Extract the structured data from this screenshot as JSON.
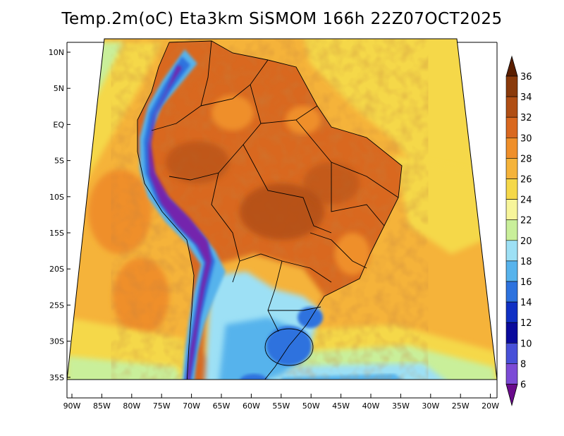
{
  "title": "Temp.2m(oC) Eta3km SiSMOM 166h 22Z07OCT2025",
  "lat_ticks": [
    "10N",
    "5N",
    "EQ",
    "5S",
    "10S",
    "15S",
    "20S",
    "25S",
    "30S",
    "35S"
  ],
  "lon_ticks": [
    "90W",
    "85W",
    "80W",
    "75W",
    "70W",
    "65W",
    "60W",
    "55W",
    "50W",
    "45W",
    "40W",
    "35W",
    "30W",
    "25W",
    "20W"
  ],
  "colorbar": {
    "labels": [
      "36",
      "34",
      "32",
      "30",
      "28",
      "26",
      "24",
      "22",
      "20",
      "18",
      "16",
      "14",
      "12",
      "10",
      "8",
      "6"
    ],
    "colors": [
      "#5a1e00",
      "#8a3a0b",
      "#b04e14",
      "#d9681f",
      "#ef8f2a",
      "#f5b33a",
      "#f5d849",
      "#f7f59a",
      "#c9ef9a",
      "#9de0f5",
      "#57b3ec",
      "#2d72de",
      "#1030c4",
      "#0a0a9c",
      "#4850d8",
      "#7c4bd6",
      "#9b2fb5",
      "#6a0a8c"
    ]
  },
  "map_colors": {
    "ocean_warm": "#f5b33a",
    "ocean_mild": "#f5d849",
    "ocean_cool": "#c9ef9a",
    "land_hot": "#d9681f",
    "land_very_hot": "#b04e14",
    "south_cool": "#9de0f5",
    "andes_cold": "#2d72de",
    "andes_coldest": "#7c1aa8"
  }
}
